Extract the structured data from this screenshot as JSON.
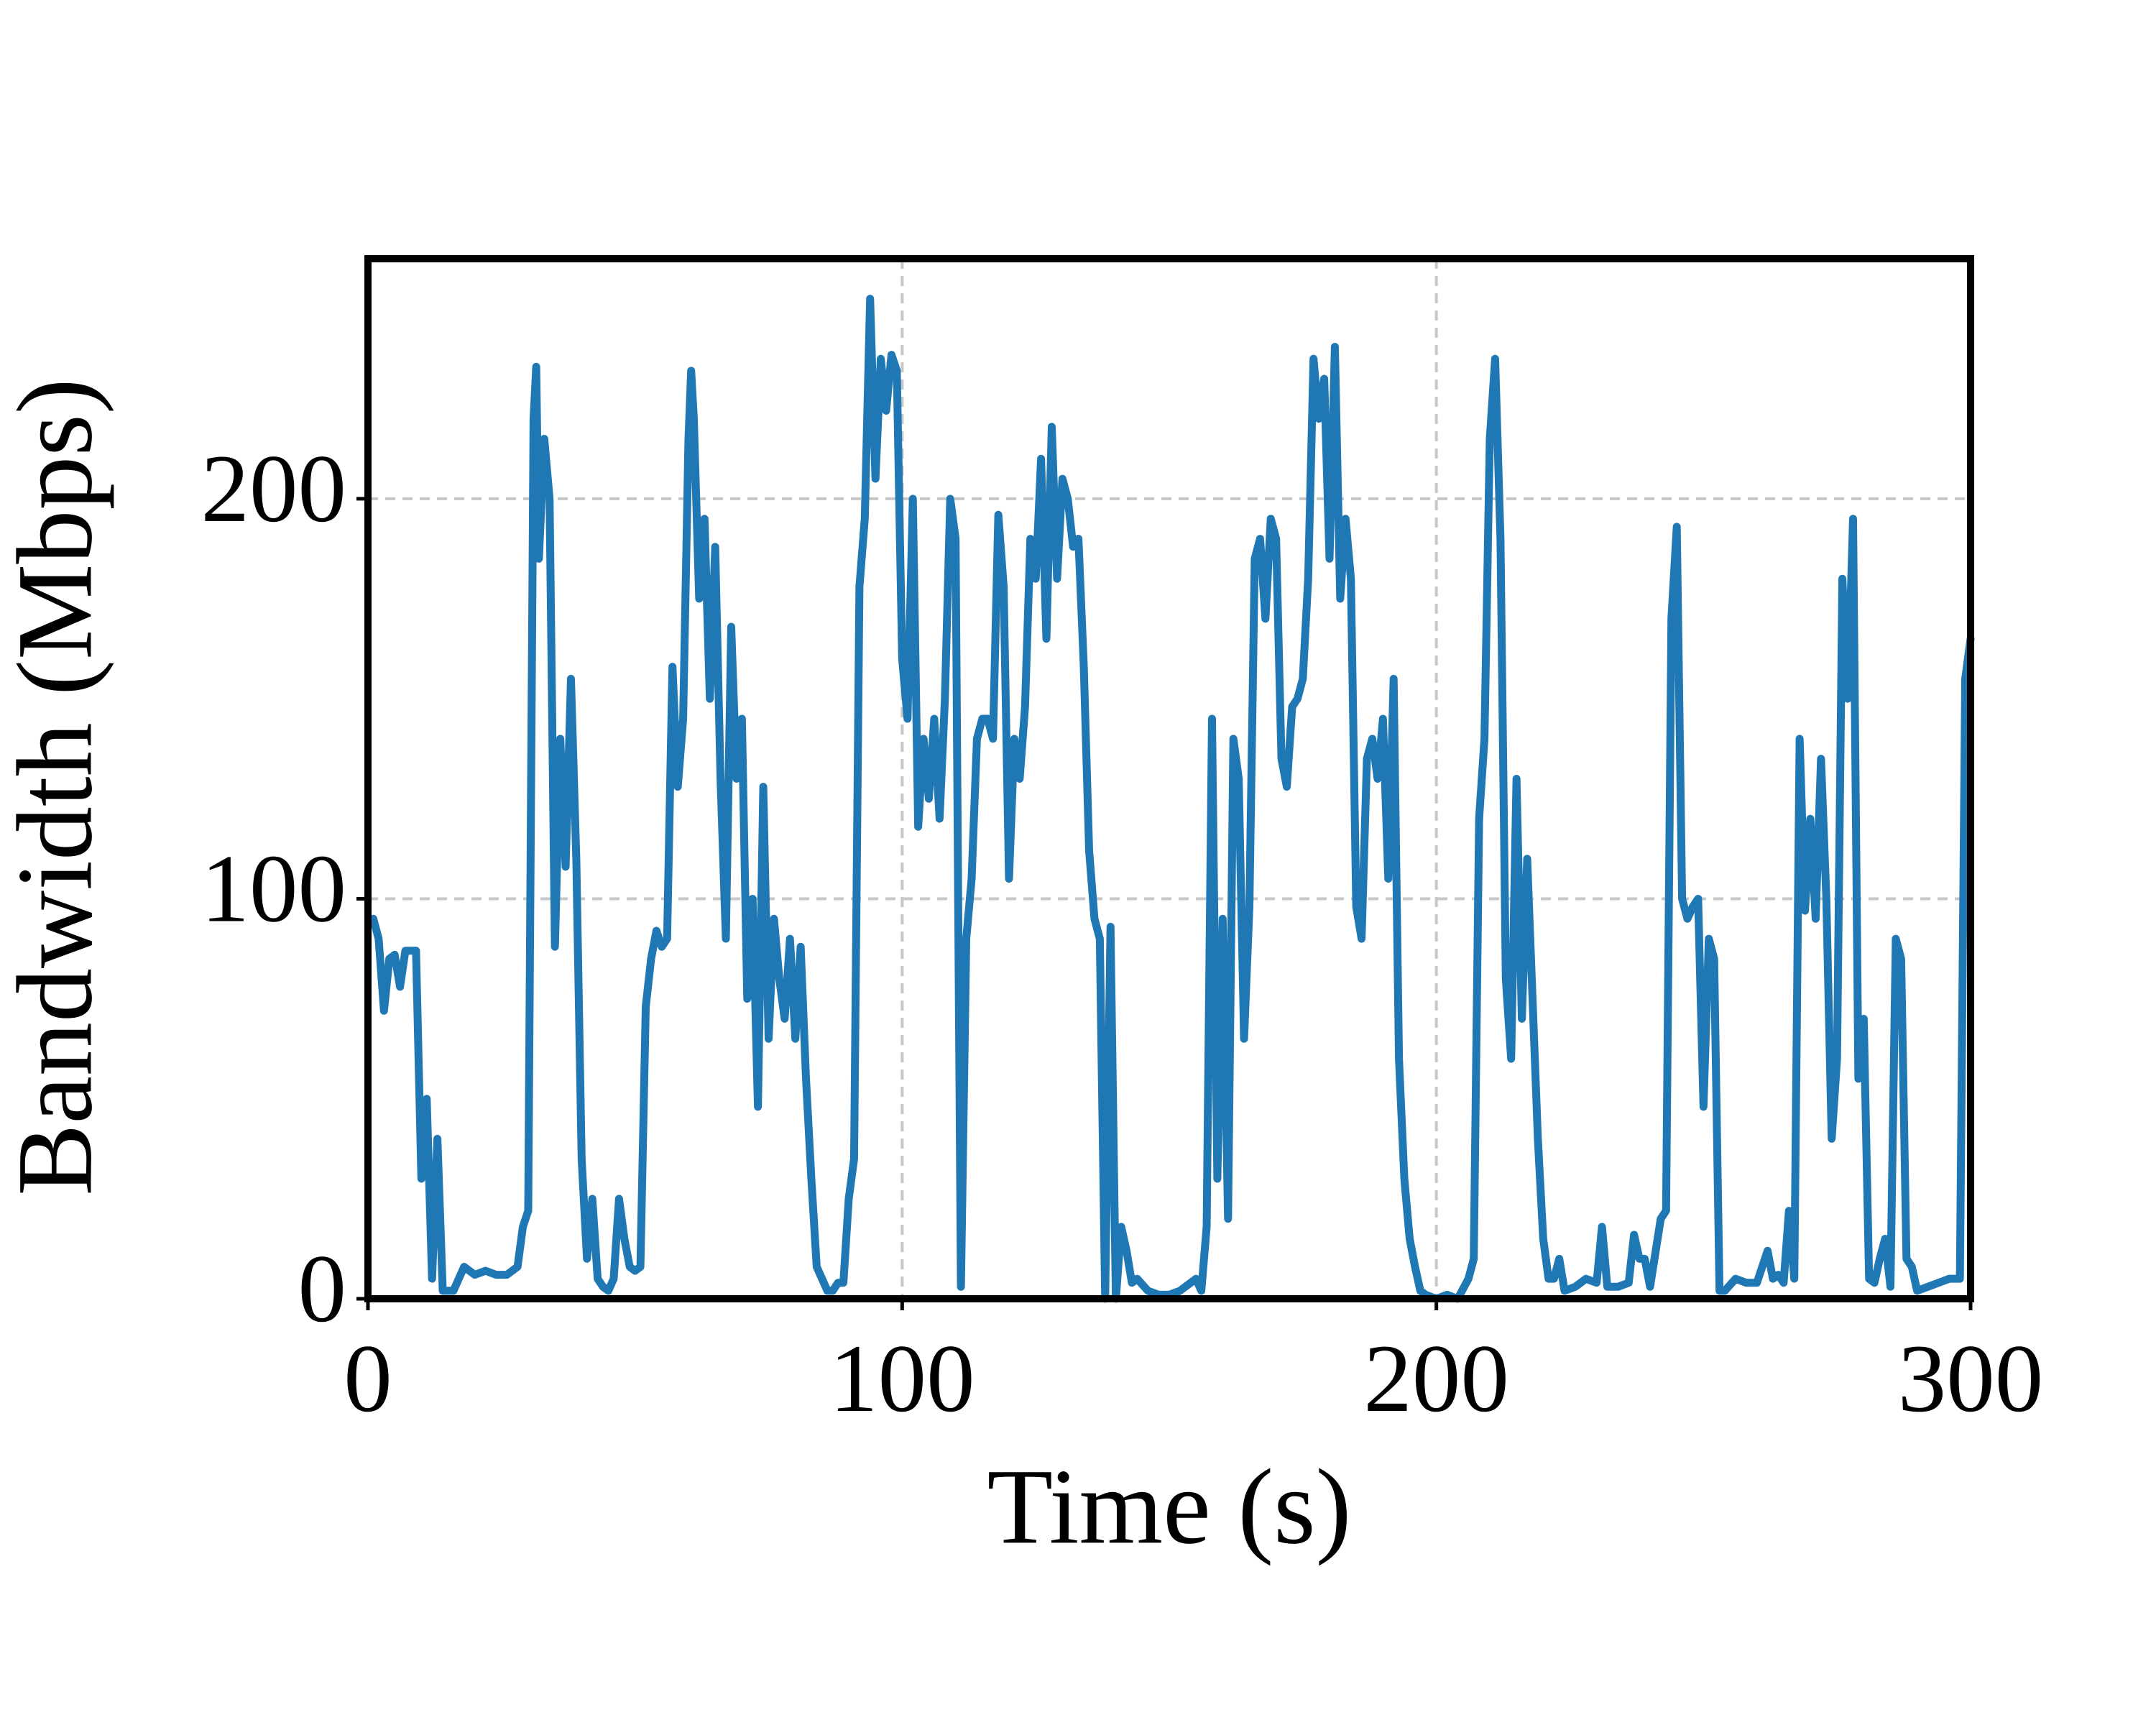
{
  "chart_data": {
    "type": "line",
    "x_label": "Time (s)",
    "y_label": "Bandwidth (Mbps)",
    "color": "#1f77b4",
    "grid": true,
    "xlim": [
      0,
      300
    ],
    "ylim": [
      0,
      260
    ],
    "xticks": [
      0,
      100,
      200,
      300
    ],
    "yticks": [
      0,
      100,
      200
    ],
    "x": [
      1,
      2,
      3,
      4,
      5,
      6,
      7,
      8,
      9,
      10,
      11,
      12,
      13,
      14,
      15,
      16,
      18,
      20,
      22,
      24,
      26,
      28,
      29,
      30,
      31,
      31.5,
      32,
      33,
      34,
      35,
      36,
      37,
      38,
      39,
      40,
      41,
      42,
      43,
      44,
      45,
      46,
      47,
      48,
      49,
      50,
      51,
      52,
      53,
      54,
      55,
      56,
      57,
      58,
      59,
      60,
      60.5,
      61,
      62,
      63,
      64,
      65,
      66,
      67,
      68,
      69,
      70,
      71,
      72,
      73,
      74,
      75,
      76,
      77,
      78,
      79,
      80,
      81,
      82,
      83,
      84,
      85,
      86,
      87,
      88,
      89,
      90,
      91,
      92,
      93,
      94,
      95,
      96,
      97,
      98,
      99,
      100,
      101,
      102,
      103,
      104,
      105,
      106,
      107,
      108,
      109,
      110,
      111,
      112,
      113,
      114,
      115,
      116,
      117,
      118,
      119,
      120,
      121,
      122,
      123,
      124,
      125,
      126,
      127,
      128,
      129,
      130,
      131,
      132,
      133,
      134,
      135,
      136,
      137,
      138,
      139,
      140,
      141,
      142,
      143,
      144,
      146,
      148,
      150,
      152,
      154,
      155,
      156,
      157,
      158,
      159,
      160,
      161,
      162,
      163,
      164,
      165,
      166,
      167,
      168,
      169,
      170,
      171,
      172,
      173,
      174,
      175,
      176,
      177,
      178,
      179,
      180,
      181,
      182,
      183,
      184,
      185,
      186,
      187,
      188,
      189,
      190,
      191,
      192,
      193,
      194,
      195,
      196,
      197,
      198,
      200,
      202,
      204,
      206,
      207,
      208,
      209,
      210,
      211,
      212,
      213,
      214,
      215,
      216,
      217,
      218,
      219,
      220,
      221,
      222,
      223,
      224,
      226,
      228,
      230,
      231,
      232,
      234,
      236,
      237,
      238,
      239,
      240,
      242,
      243,
      244,
      245,
      246,
      247,
      248,
      249,
      250,
      251,
      252,
      253,
      254,
      256,
      258,
      260,
      262,
      263,
      264,
      265,
      266,
      267,
      268,
      269,
      270,
      271,
      272,
      273,
      274,
      275,
      276,
      277,
      278,
      279,
      280,
      281,
      282,
      283,
      284,
      285,
      286,
      287,
      288,
      289,
      290,
      292,
      294,
      296,
      298,
      299,
      300
    ],
    "values": [
      95,
      90,
      72,
      85,
      86,
      78,
      87,
      87,
      87,
      30,
      50,
      5,
      40,
      2,
      2,
      2,
      8,
      6,
      7,
      6,
      6,
      8,
      18,
      22,
      220,
      233,
      185,
      215,
      200,
      88,
      140,
      108,
      155,
      110,
      35,
      10,
      25,
      5,
      3,
      2,
      5,
      25,
      15,
      8,
      7,
      8,
      73,
      85,
      92,
      88,
      90,
      158,
      128,
      145,
      215,
      232,
      220,
      175,
      195,
      150,
      188,
      130,
      90,
      168,
      130,
      145,
      75,
      100,
      48,
      128,
      65,
      95,
      80,
      70,
      90,
      65,
      88,
      55,
      30,
      8,
      5,
      2,
      2,
      4,
      4,
      25,
      35,
      178,
      195,
      250,
      205,
      235,
      222,
      236,
      232,
      160,
      145,
      200,
      118,
      140,
      125,
      145,
      120,
      150,
      200,
      190,
      3,
      90,
      105,
      140,
      145,
      145,
      140,
      196,
      178,
      105,
      140,
      130,
      148,
      190,
      180,
      210,
      165,
      218,
      180,
      205,
      200,
      188,
      190,
      158,
      112,
      95,
      90,
      0,
      93,
      0,
      18,
      12,
      4,
      5,
      2,
      1,
      1,
      2,
      4,
      5,
      2,
      18,
      145,
      30,
      95,
      20,
      140,
      130,
      65,
      98,
      185,
      190,
      170,
      195,
      190,
      135,
      128,
      148,
      150,
      155,
      180,
      235,
      220,
      230,
      185,
      238,
      175,
      195,
      180,
      98,
      90,
      135,
      140,
      130,
      145,
      105,
      155,
      60,
      30,
      15,
      8,
      2,
      1,
      0,
      1,
      0,
      5,
      10,
      120,
      140,
      215,
      235,
      190,
      80,
      60,
      130,
      70,
      110,
      75,
      40,
      15,
      5,
      5,
      10,
      2,
      3,
      5,
      4,
      18,
      3,
      3,
      4,
      16,
      10,
      10,
      3,
      20,
      22,
      170,
      193,
      100,
      95,
      98,
      100,
      48,
      90,
      85,
      2,
      2,
      5,
      4,
      4,
      12,
      5,
      6,
      4,
      22,
      5,
      140,
      97,
      120,
      95,
      135,
      100,
      40,
      60,
      180,
      150,
      195,
      55,
      70,
      5,
      4,
      10,
      15,
      3,
      90,
      85,
      10,
      8,
      2,
      3,
      4,
      5,
      5,
      155,
      165
    ]
  }
}
